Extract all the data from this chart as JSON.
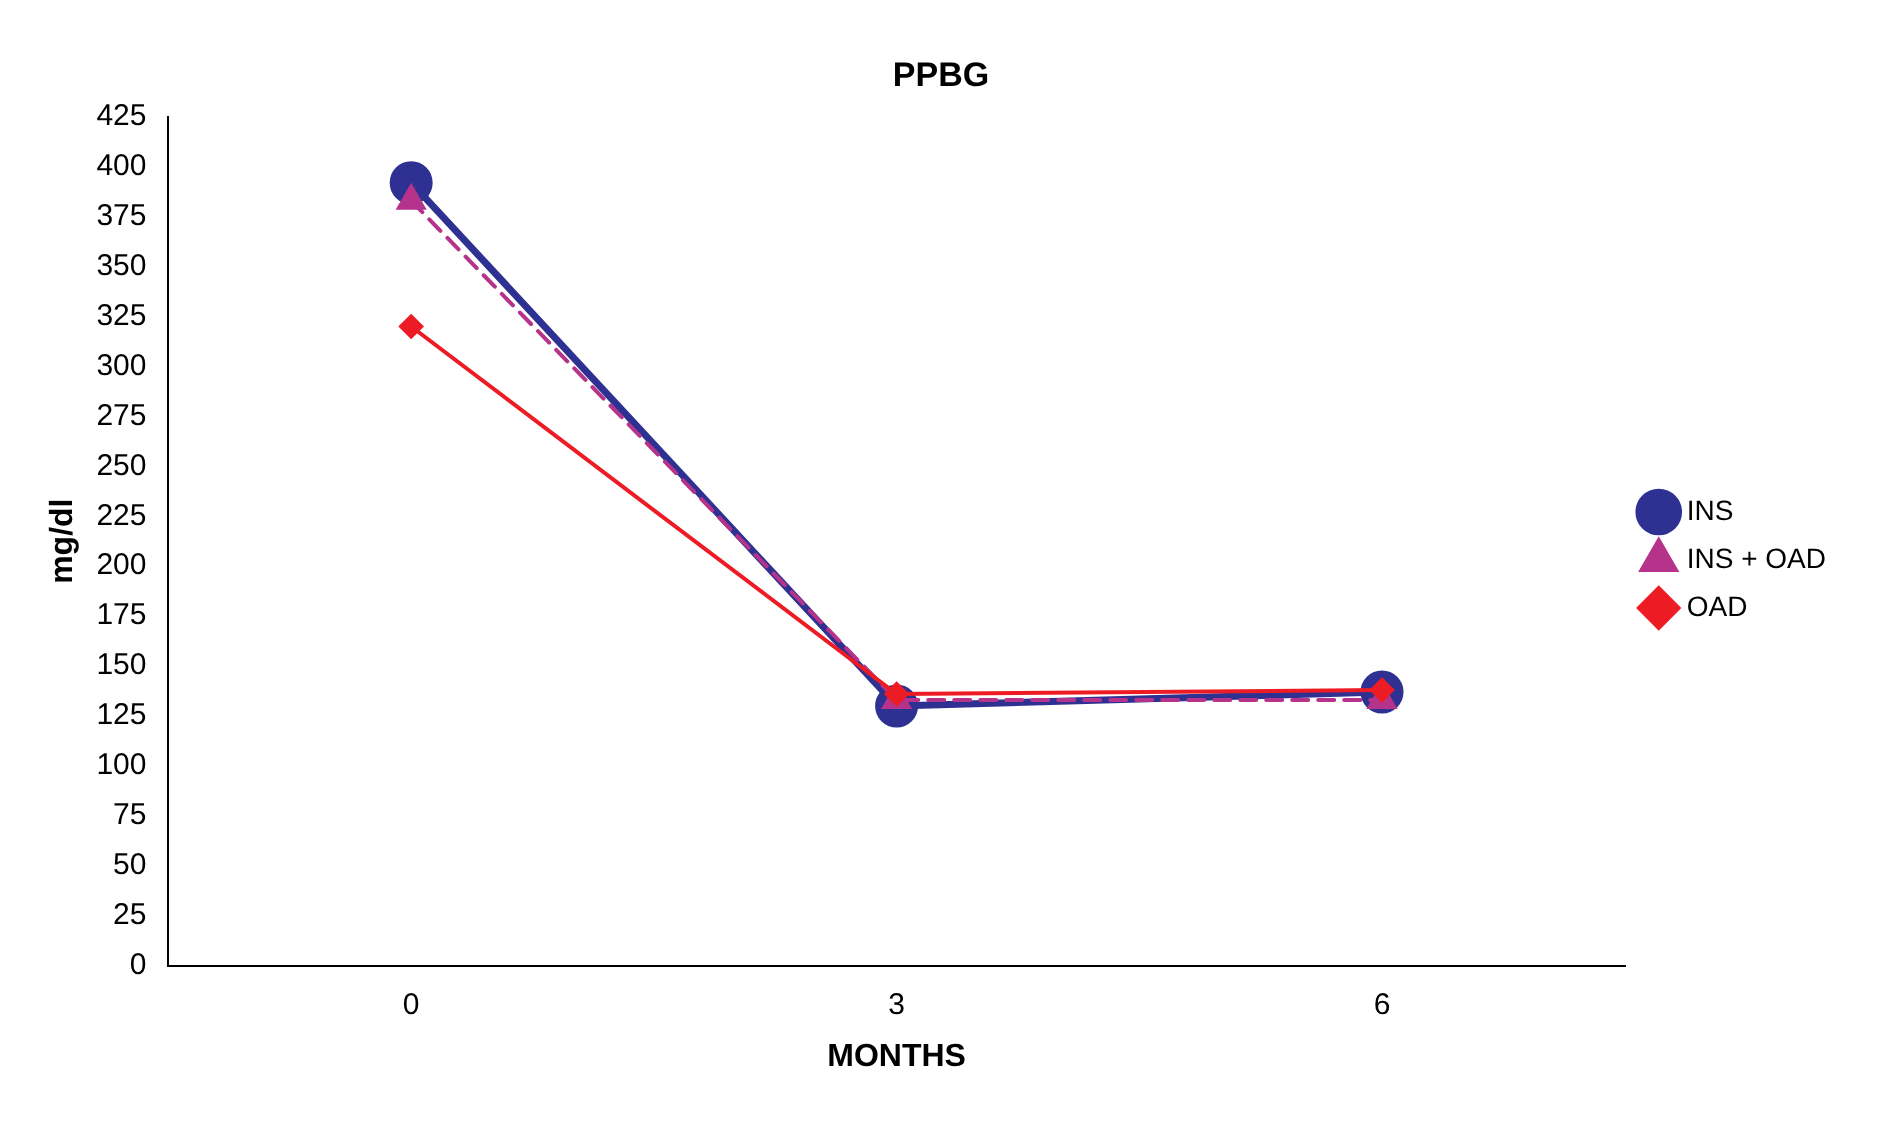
{
  "chart_data": {
    "type": "line",
    "title": "PPBG",
    "xlabel": "MONTHS",
    "ylabel": "mg/dl",
    "categories": [
      "0",
      "3",
      "6"
    ],
    "series": [
      {
        "name": "INS",
        "color": "#2e3192",
        "values": [
          392,
          130,
          137
        ],
        "marker": "circle",
        "line_style": "solid"
      },
      {
        "name": "INS + OAD",
        "color": "#b5338a",
        "values": [
          383,
          133,
          133
        ],
        "marker": "triangle",
        "line_style": "dashed"
      },
      {
        "name": "OAD",
        "color": "#ed1c24",
        "values": [
          320,
          136,
          138
        ],
        "marker": "diamond",
        "line_style": "solid"
      }
    ],
    "ylim": [
      0,
      425
    ],
    "yticks": [
      0,
      25,
      50,
      75,
      100,
      125,
      150,
      175,
      200,
      225,
      250,
      275,
      300,
      325,
      350,
      375,
      400,
      425
    ],
    "grid": false,
    "legend": "right"
  }
}
